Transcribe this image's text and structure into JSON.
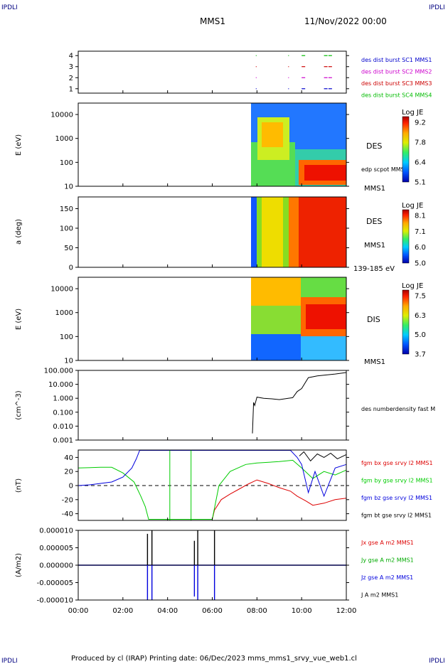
{
  "header": {
    "corner_left": "IPDLI",
    "corner_right": "IPDLI",
    "mission": "MMS1",
    "datetime": "11/Nov/2022 00:00"
  },
  "footer": {
    "text": "Produced by cl (IRAP)   Printing date: 06/Dec/2023   mms_mms1_srvy_vue_web1.cl",
    "corner_left": "IPDLI",
    "corner_right": "IPDLI"
  },
  "x_axis": {
    "ticks": [
      "00:00",
      "02:00",
      "04:00",
      "06:00",
      "08:00",
      "10:00",
      "12:00"
    ]
  },
  "chart_data": [
    {
      "type": "scatter",
      "panel": "burst-availability",
      "y_ticks": [
        "4",
        "3",
        "2",
        "1"
      ],
      "legend": [
        {
          "label": "des dist burst SC1 MMS1",
          "color": "#0000cc"
        },
        {
          "label": "des dist burst SC2 MMS2",
          "color": "#cc00cc"
        },
        {
          "label": "des dist burst SC3 MMS3",
          "color": "#cc0000"
        },
        {
          "label": "des dist burst SC4 MMS4",
          "color": "#00bb00"
        }
      ],
      "x_hours": [
        7.95,
        9.4,
        10.0,
        11.0,
        11.2
      ],
      "ylim": [
        0.6,
        4.4
      ]
    },
    {
      "type": "heatmap",
      "panel": "des-energy",
      "ylabel": "E (eV)",
      "y_ticks": [
        "10000",
        "1000",
        "100",
        "10"
      ],
      "ylim": [
        10,
        30000
      ],
      "y_scale": "log",
      "side_label": "DES",
      "side_label_2": "edp scpot MMS1",
      "mission": "MMS1",
      "colorbar": {
        "title": "Log JE",
        "ticks": [
          "9.2",
          "7.8",
          "6.4",
          "5.1"
        ],
        "range": [
          5.1,
          9.2
        ]
      },
      "data_start_hour": 7.75
    },
    {
      "type": "heatmap",
      "panel": "des-pitch-angle",
      "ylabel": "a (deg)",
      "y_ticks": [
        "150",
        "100",
        "50",
        "0"
      ],
      "ylim": [
        0,
        180
      ],
      "side_label": "DES",
      "mission": "MMS1",
      "energy_range": "139-185 eV",
      "colorbar": {
        "title": "Log JE",
        "ticks": [
          "8.1",
          "7.1",
          "6.0",
          "5.0"
        ],
        "range": [
          5.0,
          8.1
        ]
      },
      "data_start_hour": 7.75
    },
    {
      "type": "heatmap",
      "panel": "dis-energy",
      "ylabel": "E (eV)",
      "y_ticks": [
        "10000",
        "1000",
        "100",
        "10"
      ],
      "ylim": [
        10,
        30000
      ],
      "y_scale": "log",
      "side_label": "DIS",
      "mission": "MMS1",
      "colorbar": {
        "title": "Log JE",
        "ticks": [
          "7.5",
          "6.3",
          "5.0",
          "3.7"
        ],
        "range": [
          3.7,
          7.5
        ]
      },
      "data_start_hour": 7.75
    },
    {
      "type": "line",
      "panel": "density",
      "ylabel": "(cm^-3)",
      "y_ticks": [
        "100.000",
        "10.000",
        "1.000",
        "0.100",
        "0.010",
        "0.001"
      ],
      "ylim": [
        0.001,
        100
      ],
      "y_scale": "log",
      "legend": [
        {
          "label": "des numberdensity fast M",
          "color": "#000000"
        }
      ],
      "x_hours": [
        7.8,
        7.85,
        7.9,
        8.0,
        8.3,
        8.7,
        9.0,
        9.4,
        9.6,
        9.8,
        10.0,
        10.3,
        10.7,
        11.0,
        11.5,
        12.0
      ],
      "values": [
        0.003,
        0.5,
        0.3,
        1.2,
        1.0,
        0.9,
        0.8,
        1.0,
        1.1,
        3.0,
        5.0,
        30.0,
        40.0,
        45.0,
        55.0,
        70.0
      ]
    },
    {
      "type": "line",
      "panel": "magnetic-field",
      "ylabel": "(nT)",
      "y_ticks": [
        "40",
        "20",
        "0",
        "-20",
        "-40"
      ],
      "ylim": [
        -50,
        50
      ],
      "legend": [
        {
          "label": "fgm bx gse srvy l2 MMS1",
          "color": "#dd0000"
        },
        {
          "label": "fgm by gse srvy l2 MMS1",
          "color": "#00cc00"
        },
        {
          "label": "fgm bz gse srvy l2 MMS1",
          "color": "#0000dd"
        },
        {
          "label": "fgm bt gse srvy l2 MMS1",
          "color": "#000000"
        }
      ],
      "series": [
        {
          "name": "fgm bx gse srvy l2 MMS1",
          "color": "#dd0000",
          "x": [
            6.0,
            6.1,
            6.4,
            6.8,
            7.2,
            7.6,
            8.0,
            8.5,
            9.0,
            9.5,
            9.8,
            10.2,
            10.5,
            11.0,
            11.5,
            12.0
          ],
          "values": [
            -48,
            -35,
            -20,
            -12,
            -5,
            2,
            8,
            3,
            -3,
            -8,
            -15,
            -22,
            -28,
            -25,
            -20,
            -18
          ]
        },
        {
          "name": "fgm by gse srvy l2 MMS1",
          "color": "#00cc00",
          "x": [
            0.0,
            1.0,
            1.5,
            2.0,
            2.5,
            2.8,
            3.0,
            3.15,
            6.0,
            6.3,
            6.8,
            7.5,
            8.0,
            9.0,
            9.6,
            10.0,
            10.5,
            11.0,
            11.5,
            12.0
          ],
          "values": [
            25,
            26,
            26,
            18,
            5,
            -15,
            -30,
            -48,
            -48,
            0,
            20,
            30,
            32,
            34,
            36,
            25,
            10,
            20,
            15,
            22
          ]
        },
        {
          "name": "fgm bz gse srvy l2 MMS1",
          "color": "#0000dd",
          "x": [
            0.0,
            0.5,
            1.0,
            1.5,
            2.0,
            2.4,
            2.6,
            2.75,
            9.5,
            9.8,
            10.0,
            10.3,
            10.6,
            11.0,
            11.5,
            12.0
          ],
          "values": [
            0,
            1,
            3,
            5,
            12,
            25,
            38,
            50,
            50,
            40,
            30,
            -10,
            20,
            -15,
            25,
            30
          ]
        },
        {
          "name": "fgm bt gse srvy l2 MMS1",
          "color": "#000000",
          "x": [
            9.9,
            10.1,
            10.4,
            10.7,
            11.0,
            11.3,
            11.6,
            12.0
          ],
          "values": [
            42,
            48,
            35,
            45,
            40,
            46,
            38,
            44
          ]
        }
      ]
    },
    {
      "type": "line",
      "panel": "current-density",
      "ylabel": "(A/m2)",
      "y_ticks": [
        "0.000010",
        "0.000005",
        "0.000000",
        "-0.000005",
        "-0.000010"
      ],
      "ylim": [
        -1e-05,
        1e-05
      ],
      "legend": [
        {
          "label": "Jx gse A m2 MMS1",
          "color": "#dd0000"
        },
        {
          "label": "Jy gse A m2 MMS1",
          "color": "#00aa00"
        },
        {
          "label": "Jz gse A m2 MMS1",
          "color": "#0000dd"
        },
        {
          "label": "J A m2 MMS1",
          "color": "#000000"
        }
      ],
      "spikes": [
        {
          "x": 3.1,
          "j": 9e-06,
          "jz": -1e-05
        },
        {
          "x": 3.3,
          "j": 1e-05,
          "jz": -1e-05
        },
        {
          "x": 5.2,
          "j": 7e-06,
          "jz": -9e-06
        },
        {
          "x": 5.35,
          "j": 1e-05,
          "jz": -1e-05
        },
        {
          "x": 6.1,
          "j": 1e-05,
          "jz": -1e-05
        }
      ]
    }
  ]
}
